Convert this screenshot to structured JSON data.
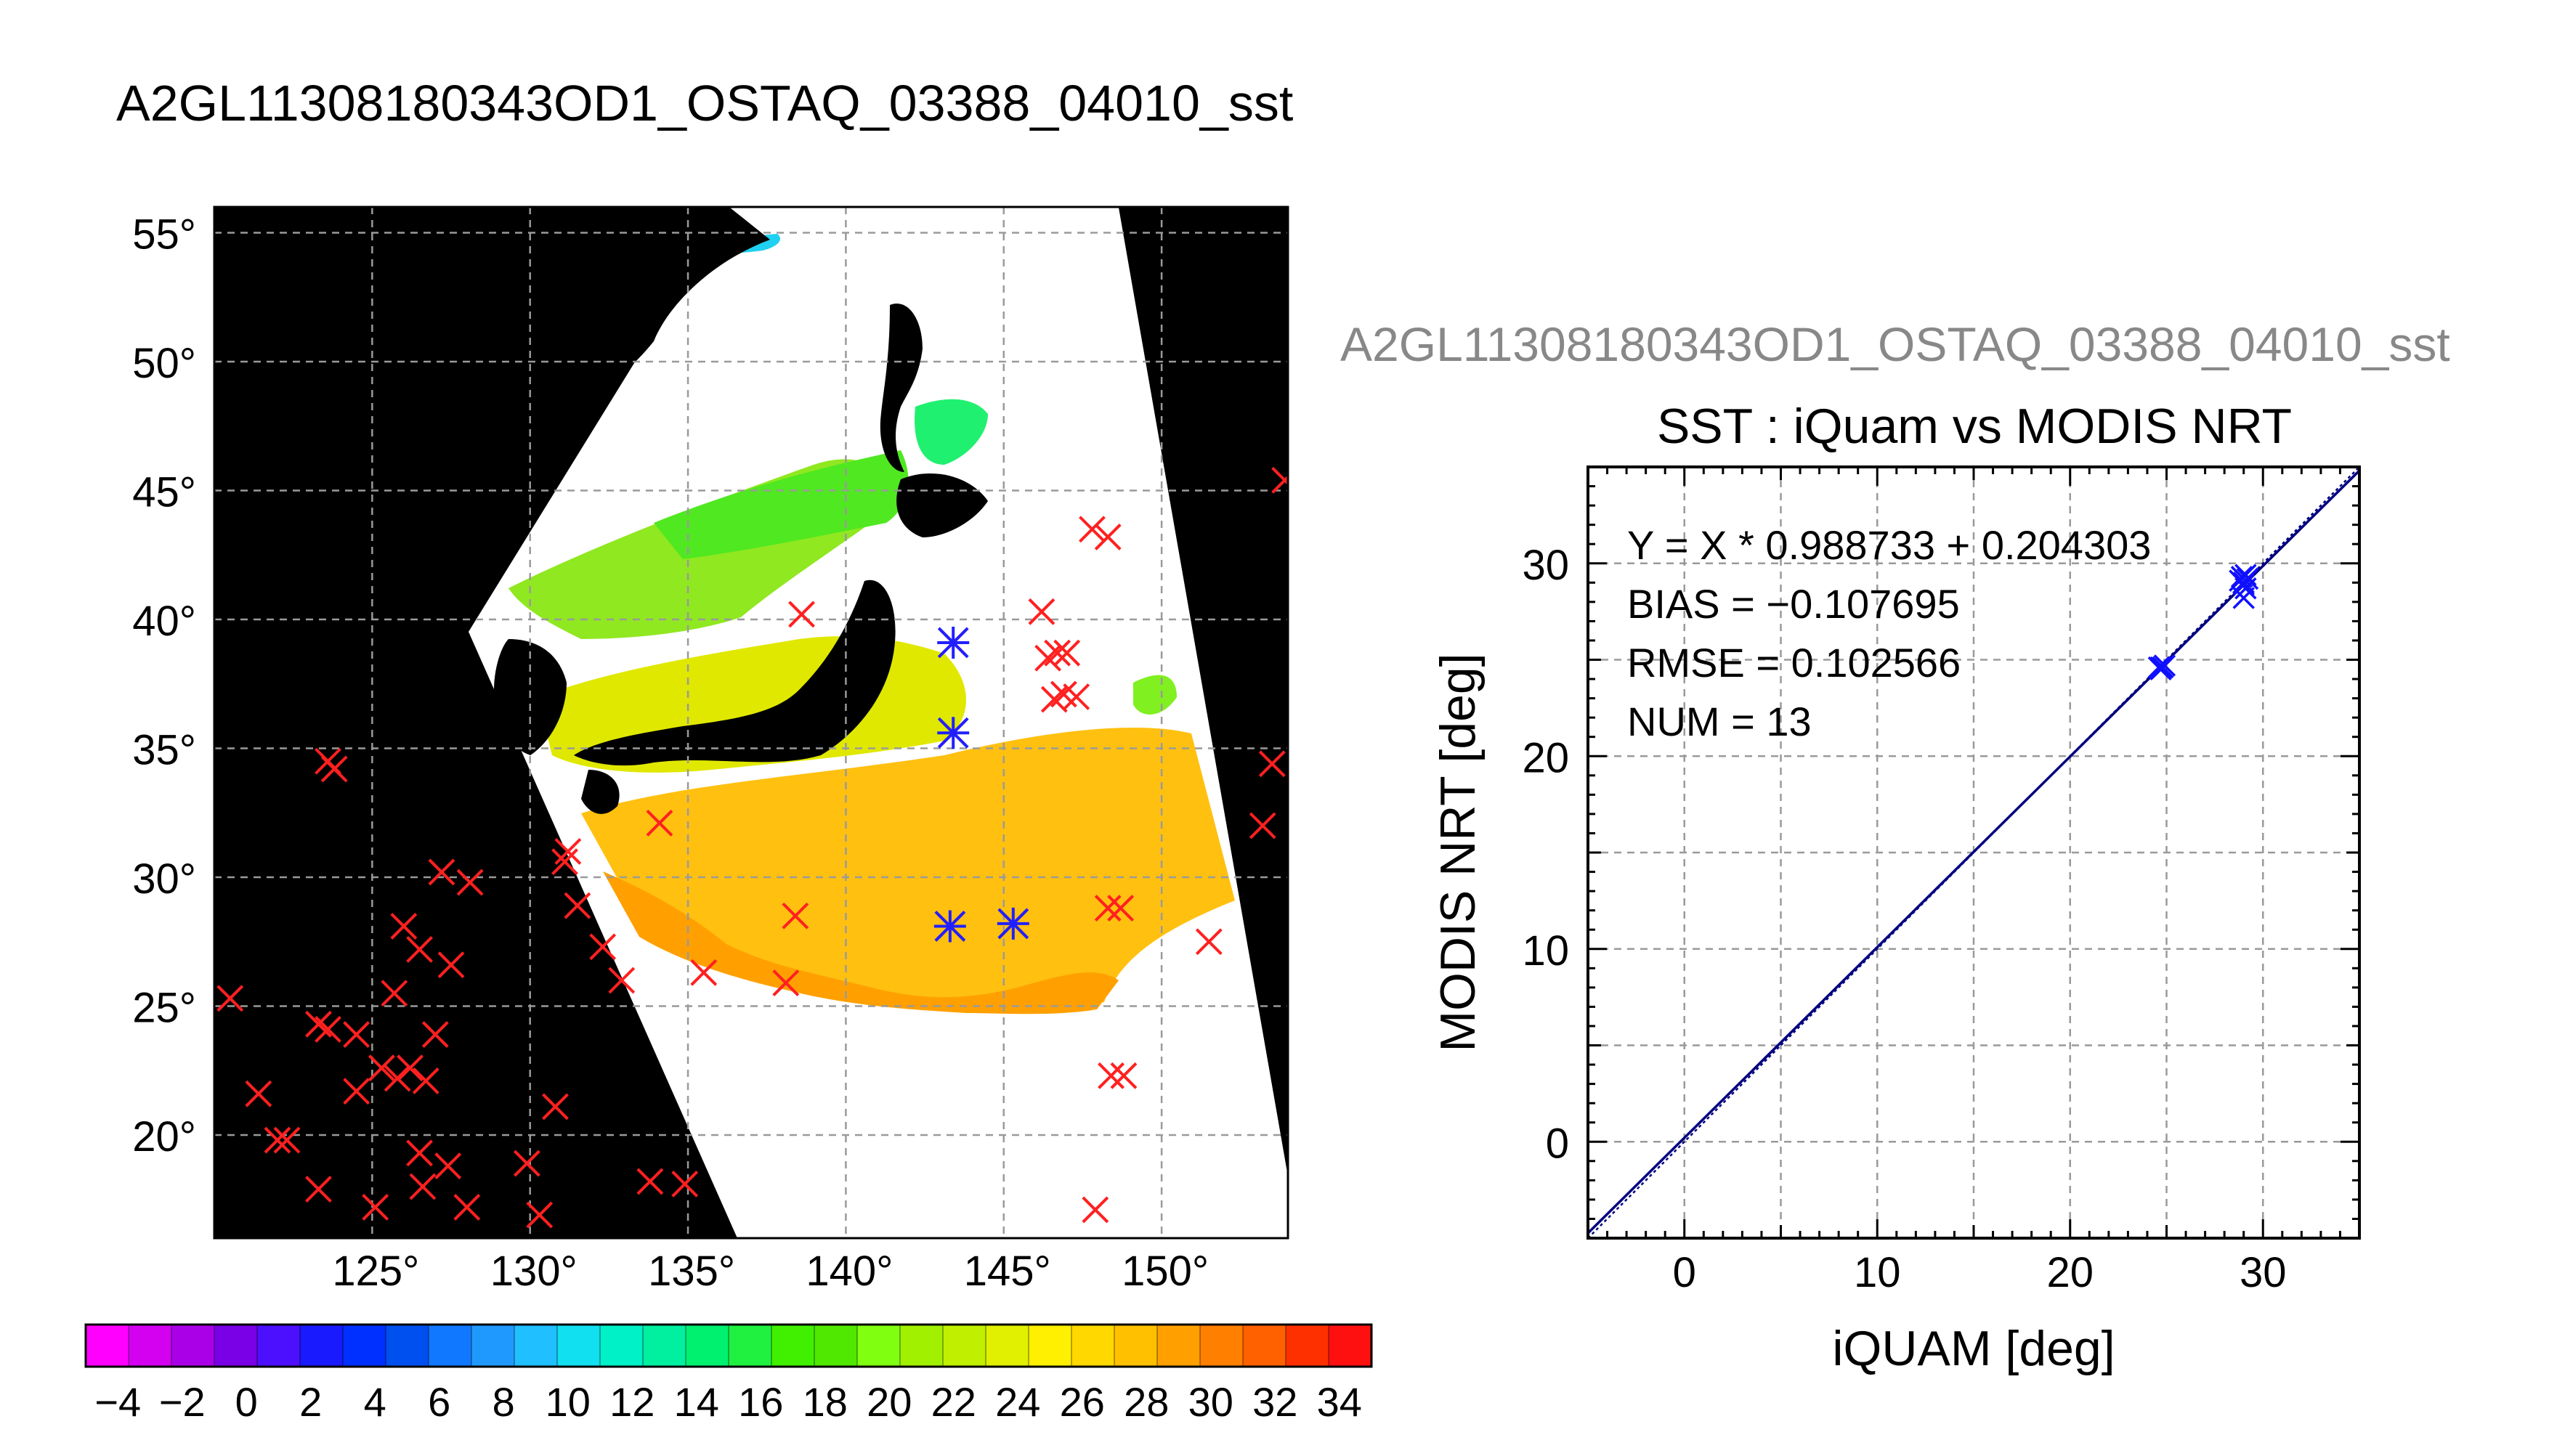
{
  "title": "A2GL11308180343OD1_OSTAQ_03388_04010_sst",
  "map": {
    "lat_labels": [
      "55°",
      "50°",
      "45°",
      "40°",
      "35°",
      "30°",
      "25°",
      "20°"
    ],
    "lat_values": [
      55,
      50,
      45,
      40,
      35,
      30,
      25,
      20
    ],
    "lon_labels": [
      "125°",
      "130°",
      "135°",
      "140°",
      "145°",
      "150°"
    ],
    "lon_values": [
      125,
      130,
      135,
      140,
      145,
      150
    ],
    "lon_range": [
      120,
      154
    ],
    "lat_range": [
      16,
      56
    ],
    "background_color": "#000000",
    "cloud_color": "#ffffff",
    "iquam_marker_color": "#ff2020",
    "matchup_marker_color": "#2020ff",
    "iquam_points": [
      [
        120.5,
        25.3
      ],
      [
        121.4,
        21.6
      ],
      [
        122.0,
        19.8
      ],
      [
        122.3,
        19.8
      ],
      [
        123.3,
        17.9
      ],
      [
        123.3,
        24.3
      ],
      [
        123.6,
        24.1
      ],
      [
        123.6,
        34.5
      ],
      [
        123.8,
        34.2
      ],
      [
        124.5,
        21.7
      ],
      [
        124.5,
        23.9
      ],
      [
        125.1,
        17.2
      ],
      [
        125.3,
        22.6
      ],
      [
        125.7,
        25.5
      ],
      [
        125.8,
        22.2
      ],
      [
        126.0,
        28.1
      ],
      [
        126.2,
        22.6
      ],
      [
        126.5,
        19.3
      ],
      [
        126.5,
        27.2
      ],
      [
        126.6,
        18.0
      ],
      [
        126.7,
        22.1
      ],
      [
        127.0,
        23.9
      ],
      [
        127.2,
        30.2
      ],
      [
        127.4,
        18.8
      ],
      [
        127.5,
        26.6
      ],
      [
        128.0,
        17.2
      ],
      [
        128.1,
        29.8
      ],
      [
        129.9,
        18.9
      ],
      [
        130.3,
        16.9
      ],
      [
        130.8,
        21.1
      ],
      [
        131.1,
        30.6
      ],
      [
        131.2,
        31.0
      ],
      [
        131.5,
        28.9
      ],
      [
        132.3,
        27.3
      ],
      [
        132.9,
        26.0
      ],
      [
        133.8,
        18.2
      ],
      [
        134.1,
        32.1
      ],
      [
        134.9,
        18.1
      ],
      [
        135.5,
        26.3
      ],
      [
        138.1,
        25.9
      ],
      [
        138.4,
        28.5
      ],
      [
        138.6,
        40.2
      ],
      [
        143.4,
        39.1
      ],
      [
        143.4,
        35.6
      ],
      [
        143.3,
        28.1
      ],
      [
        145.3,
        28.2
      ],
      [
        146.2,
        40.3
      ],
      [
        146.4,
        38.5
      ],
      [
        146.7,
        38.7
      ],
      [
        146.6,
        36.9
      ],
      [
        146.9,
        37.1
      ],
      [
        147.0,
        38.7
      ],
      [
        147.3,
        37.0
      ],
      [
        147.9,
        17.1
      ],
      [
        147.8,
        43.5
      ],
      [
        148.3,
        28.8
      ],
      [
        148.3,
        43.2
      ],
      [
        148.4,
        22.3
      ],
      [
        148.8,
        22.3
      ],
      [
        148.7,
        28.8
      ],
      [
        151.5,
        27.5
      ],
      [
        153.2,
        32.0
      ],
      [
        153.5,
        34.4
      ],
      [
        153.9,
        45.4
      ]
    ],
    "matchup_points": [
      [
        143.4,
        39.1
      ],
      [
        143.4,
        35.6
      ],
      [
        143.3,
        28.1
      ],
      [
        145.3,
        28.2
      ]
    ]
  },
  "colorbar": {
    "tick_labels": [
      "−4",
      "−2",
      "0",
      "2",
      "4",
      "6",
      "8",
      "10",
      "12",
      "14",
      "16",
      "18",
      "20",
      "22",
      "24",
      "26",
      "28",
      "30",
      "32",
      "34"
    ],
    "min": -5,
    "max": 35,
    "colors": [
      "#ff00ff",
      "#d400f0",
      "#aa00e8",
      "#7a00e6",
      "#4c10ff",
      "#1a1aff",
      "#0030ff",
      "#0050f0",
      "#1078ff",
      "#2099ff",
      "#20bfff",
      "#10e0f0",
      "#00f0c8",
      "#00f0a0",
      "#00f070",
      "#20f040",
      "#40f000",
      "#50e800",
      "#80ff10",
      "#a0f000",
      "#c0f000",
      "#e0f000",
      "#ffef00",
      "#ffd800",
      "#ffc000",
      "#ffa000",
      "#ff8000",
      "#ff6000",
      "#ff3000",
      "#ff1010"
    ]
  },
  "scatter_title": "A2GL11308180343OD1_OSTAQ_03388_04010_sst",
  "chart_data": {
    "type": "scatter",
    "title": "SST : iQuam vs MODIS NRT",
    "xlabel": "iQUAM [deg]",
    "ylabel": "MODIS NRT [deg]",
    "xlim": [
      -5,
      35
    ],
    "ylim": [
      -5,
      35
    ],
    "xticks": [
      0,
      10,
      20,
      30
    ],
    "yticks": [
      0,
      10,
      20,
      30
    ],
    "grid": true,
    "annotations": [
      "Y = X * 0.988733 + 0.204303",
      "BIAS = −0.107695",
      "RMSE = 0.102566",
      "NUM = 13"
    ],
    "fit": {
      "slope": 0.988733,
      "intercept": 0.204303
    },
    "points": [
      [
        24.6,
        24.6
      ],
      [
        24.7,
        24.5
      ],
      [
        24.8,
        24.6
      ],
      [
        24.9,
        24.7
      ],
      [
        24.7,
        24.6
      ],
      [
        28.9,
        29.3
      ],
      [
        29.0,
        29.0
      ],
      [
        29.1,
        28.7
      ],
      [
        29.0,
        28.2
      ],
      [
        28.8,
        29.1
      ],
      [
        29.2,
        29.2
      ],
      [
        29.0,
        28.9
      ],
      [
        29.1,
        29.4
      ]
    ],
    "marker_color": "#1010ff",
    "line_color": "#000080"
  }
}
